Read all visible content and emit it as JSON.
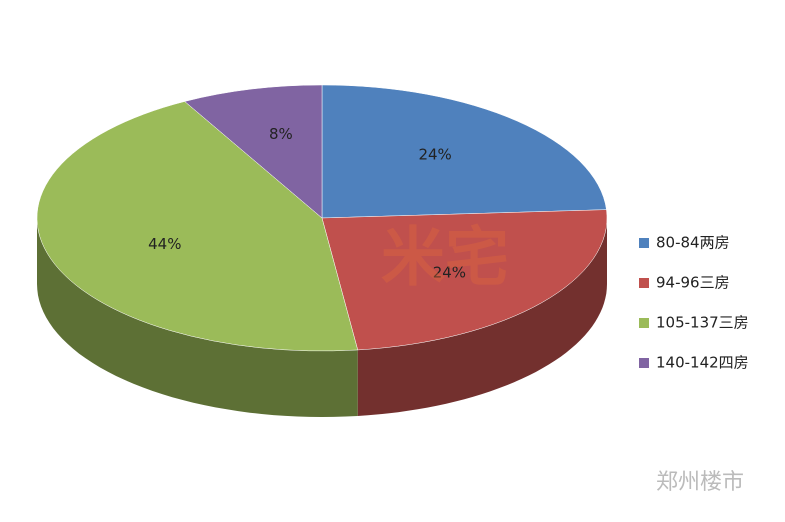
{
  "chart_data": {
    "type": "pie",
    "categories": [
      "80-84两房",
      "94-96三房",
      "105-137三房",
      "140-142四房"
    ],
    "values": [
      24,
      24,
      44,
      8
    ],
    "value_labels": [
      "24%",
      "24%",
      "44%",
      "8%"
    ],
    "colors": [
      "#4f81bd",
      "#c0504d",
      "#9bbb59",
      "#8064a2"
    ],
    "legend": "right",
    "watermarks": [
      "米宅",
      "郑州楼市"
    ]
  }
}
